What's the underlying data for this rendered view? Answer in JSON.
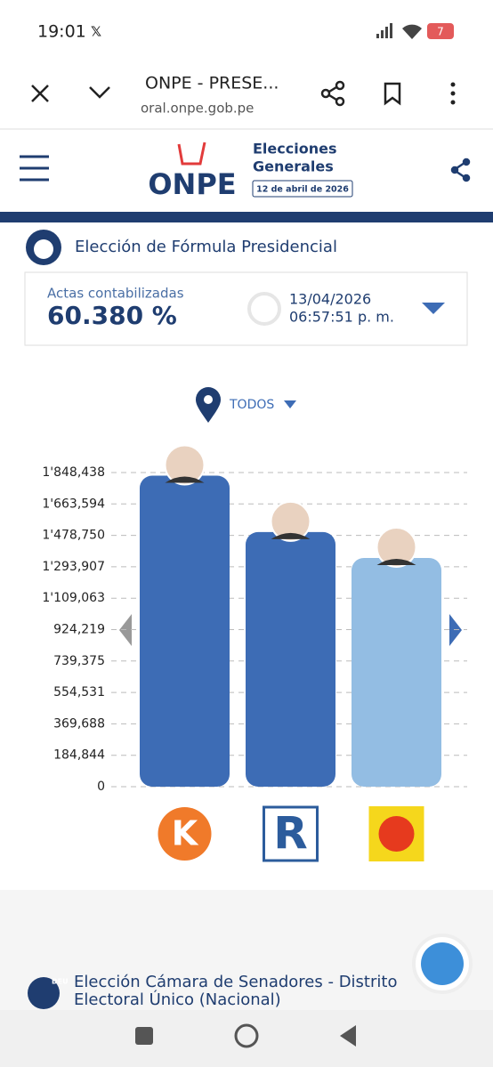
{
  "status_bar": {
    "time": "19:01",
    "battery": "7"
  },
  "browser": {
    "title": "ONPE - PRESE...",
    "url": "oral.onpe.gob.pe"
  },
  "header": {
    "logo": "ONPE",
    "line1": "Elecciones",
    "line2": "Generales",
    "date": "12 de abril de 2026"
  },
  "section": {
    "title": "Elección de Fórmula Presidencial"
  },
  "summary": {
    "label": "Actas contabilizadas",
    "percent": "60.380 %",
    "date": "13/04/2026",
    "time": "06:57:51 p. m."
  },
  "filter": {
    "label": "TODOS"
  },
  "chart_data": {
    "type": "bar",
    "values": [
      1830000,
      1498000,
      1346000
    ],
    "colors": [
      "#3d6cb5",
      "#3d6cb5",
      "#93bde3"
    ],
    "ylim": [
      0,
      1848438
    ],
    "yticks": [
      0,
      {
        "value": 184844,
        "label": "184,844"
      },
      {
        "value": 369688,
        "label": "369,688"
      },
      {
        "value": 554531,
        "label": "554,531"
      },
      {
        "value": 739375,
        "label": "739,375"
      },
      {
        "value": 924219,
        "label": "924,219"
      },
      {
        "value": 1109063,
        "label": "1'109,063"
      },
      {
        "value": 1293907,
        "label": "1'293,907"
      },
      {
        "value": 1478750,
        "label": "1'478,750"
      },
      {
        "value": 1663594,
        "label": "1'663,594"
      },
      {
        "value": 1848438,
        "label": "1'848,438"
      }
    ],
    "grid": true,
    "party_letters": [
      "K",
      "R"
    ]
  },
  "next_section": {
    "badge": "DEU",
    "line1": "Elección Cámara de Senadores - Distrito",
    "line2": "Electoral Único (Nacional)"
  }
}
